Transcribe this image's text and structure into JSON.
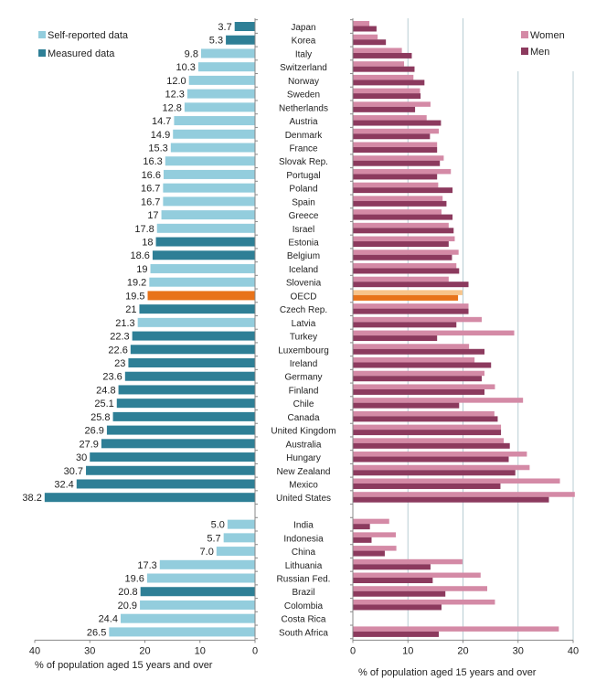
{
  "colors": {
    "self_reported": "#93cddd",
    "measured": "#2e7f96",
    "oecd": "#e8731a",
    "oecd_women": "#f8c48a",
    "women": "#d48aa6",
    "men": "#8c3a5e",
    "grid": "#b8cdd3"
  },
  "chart_data": [
    {
      "type": "bar",
      "orientation": "horizontal-reversed",
      "xlabel": "% of population aged 15 years and over",
      "xlim": [
        0,
        40
      ],
      "xticks": [
        "40",
        "30",
        "20",
        "10",
        "0"
      ],
      "legend": {
        "position": "top-left",
        "items": [
          {
            "key": "self",
            "label": "Self-reported data"
          },
          {
            "key": "measured",
            "label": "Measured data"
          }
        ]
      },
      "categories": [
        "Japan",
        "Korea",
        "Italy",
        "Switzerland",
        "Norway",
        "Sweden",
        "Netherlands",
        "Austria",
        "Denmark",
        "France",
        "Slovak Rep.",
        "Portugal",
        "Poland",
        "Spain",
        "Greece",
        "Israel",
        "Estonia",
        "Belgium",
        "Iceland",
        "Slovenia",
        "OECD",
        "Czech Rep.",
        "Latvia",
        "Turkey",
        "Luxembourg",
        "Ireland",
        "Germany",
        "Finland",
        "Chile",
        "Canada",
        "United Kingdom",
        "Australia",
        "Hungary",
        "New Zealand",
        "Mexico",
        "United States",
        "",
        "India",
        "Indonesia",
        "China",
        "Lithuania",
        "Russian Fed.",
        "Brazil",
        "Colombia",
        "Costa Rica",
        "South Africa"
      ],
      "values": [
        3.7,
        5.3,
        9.8,
        10.3,
        12.0,
        12.3,
        12.8,
        14.7,
        14.9,
        15.3,
        16.3,
        16.6,
        16.7,
        16.7,
        17,
        17.8,
        18,
        18.6,
        19,
        19.2,
        19.5,
        21,
        21.3,
        22.3,
        22.6,
        23,
        23.6,
        24.8,
        25.1,
        25.8,
        26.9,
        27.9,
        30,
        30.7,
        32.4,
        38.2,
        null,
        5.0,
        5.7,
        7.0,
        17.3,
        19.6,
        20.8,
        20.9,
        24.4,
        26.5
      ],
      "value_labels": [
        "3.7",
        "5.3",
        "9.8",
        "10.3",
        "12.0",
        "12.3",
        "12.8",
        "14.7",
        "14.9",
        "15.3",
        "16.3",
        "16.6",
        "16.7",
        "16.7",
        "17",
        "17.8",
        "18",
        "18.6",
        "19",
        "19.2",
        "19.5",
        "21",
        "21.3",
        "22.3",
        "22.6",
        "23",
        "23.6",
        "24.8",
        "25.1",
        "25.8",
        "26.9",
        "27.9",
        "30",
        "30.7",
        "32.4",
        "38.2",
        "",
        "5.0",
        "5.7",
        "7.0",
        "17.3",
        "19.6",
        "20.8",
        "20.9",
        "24.4",
        "26.5"
      ],
      "data_type": [
        "measured",
        "measured",
        "self",
        "self",
        "self",
        "self",
        "self",
        "self",
        "self",
        "self",
        "self",
        "self",
        "self",
        "self",
        "self",
        "self",
        "measured",
        "measured",
        "self",
        "self",
        "oecd",
        "measured",
        "self",
        "measured",
        "measured",
        "measured",
        "measured",
        "measured",
        "measured",
        "measured",
        "measured",
        "measured",
        "measured",
        "measured",
        "measured",
        "measured",
        "",
        "self",
        "self",
        "self",
        "self",
        "self",
        "measured",
        "self",
        "self",
        "self"
      ]
    },
    {
      "type": "bar",
      "orientation": "horizontal",
      "xlabel": "% of population aged 15 years and over",
      "xlim": [
        0,
        40
      ],
      "xticks": [
        "0",
        "10",
        "20",
        "30",
        "40"
      ],
      "grid": true,
      "legend": {
        "position": "top-right"
      },
      "series": [
        {
          "name": "Women",
          "values": [
            3.0,
            4.5,
            8.9,
            9.3,
            11.0,
            12.2,
            14.1,
            13.4,
            15.6,
            15.3,
            16.5,
            17.8,
            15.5,
            16.3,
            16.1,
            17.4,
            18.5,
            19.2,
            18.8,
            17.4,
            19.9,
            21.0,
            23.4,
            29.3,
            21.1,
            22.1,
            23.9,
            25.8,
            30.9,
            25.7,
            26.9,
            27.4,
            31.6,
            32.1,
            37.6,
            40.3,
            null,
            6.6,
            7.8,
            7.9,
            19.9,
            23.2,
            24.4,
            25.8,
            null,
            37.4
          ]
        },
        {
          "name": "Men",
          "values": [
            4.3,
            6.0,
            10.7,
            11.2,
            13.0,
            12.3,
            11.3,
            16.0,
            14.0,
            15.3,
            15.8,
            15.3,
            18.1,
            17.0,
            18.1,
            18.3,
            17.4,
            18.0,
            19.3,
            21.0,
            19.1,
            21.0,
            18.8,
            15.3,
            23.9,
            25.1,
            23.4,
            23.9,
            19.3,
            26.3,
            26.9,
            28.5,
            28.3,
            29.5,
            26.8,
            35.6,
            null,
            3.1,
            3.4,
            5.8,
            14.1,
            14.5,
            16.8,
            16.1,
            null,
            15.6
          ]
        }
      ]
    }
  ]
}
